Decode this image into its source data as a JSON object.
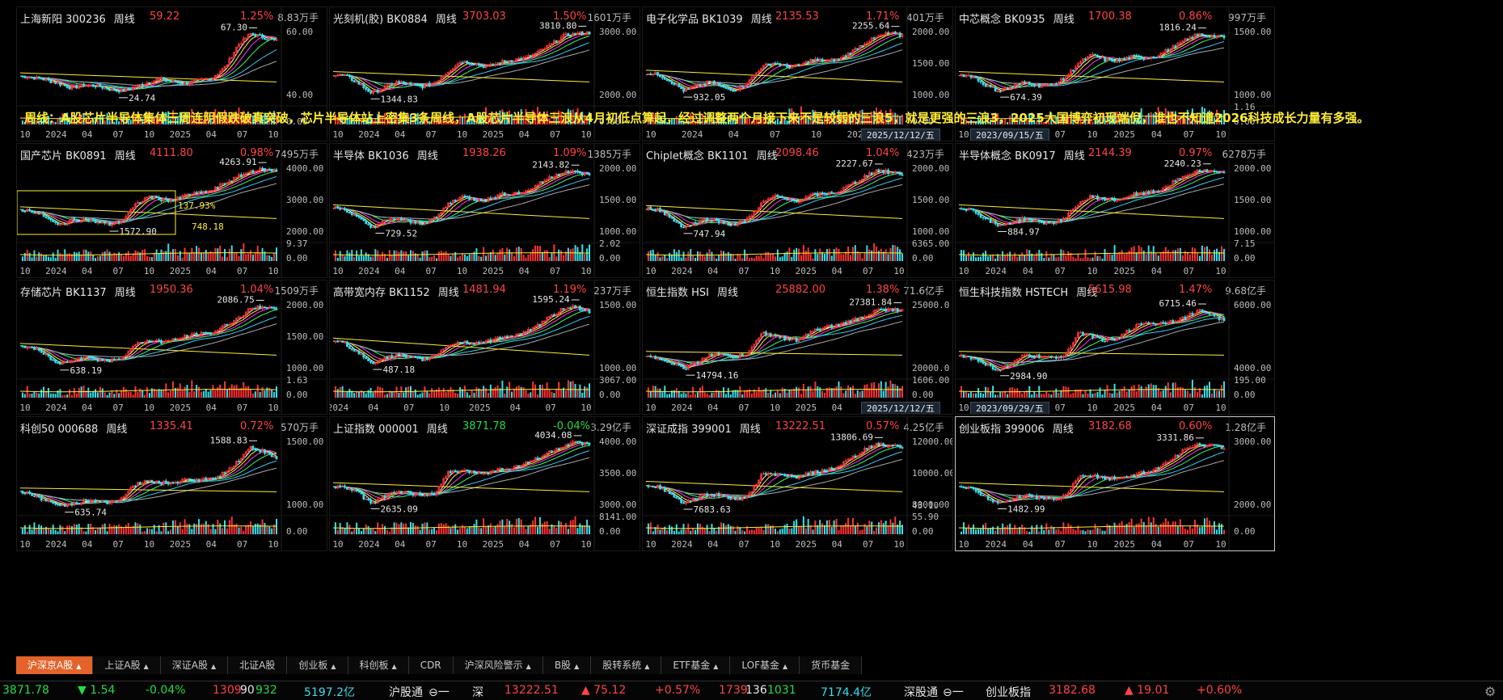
{
  "overlay_text": "周线：A股芯片半导体集体三周连阴假跌破真突破，芯片半导体站上密集3条周线，A股芯片半导体三浪从4月初低点算起，经过调整两个月接下来不是较弱的三浪5，就是更强的三浪3，2025大国博弈初现端倪，谁也不知道2026科技成长力量有多强。",
  "panels": [
    {
      "name": "上海新阳",
      "code": "300236",
      "tf": "周线",
      "price": "59.22",
      "pct": "1.25%",
      "dir": "up",
      "vol": "8.83万手",
      "high": "67.30",
      "low": "24.74",
      "yl": [
        "60.00",
        "40.00"
      ],
      "vl": [
        "",
        "0.00"
      ],
      "x": [
        "10",
        "2024",
        "04",
        "07",
        "10",
        "2025",
        "04",
        "07",
        "10"
      ],
      "shape": [
        0.38,
        0.36,
        0.33,
        0.28,
        0.22,
        0.26,
        0.25,
        0.2,
        0.18,
        0.24,
        0.3,
        0.34,
        0.3,
        0.28,
        0.32,
        0.36,
        0.5,
        0.8,
        0.95,
        0.9,
        0.85
      ],
      "date": "",
      "box": false
    },
    {
      "name": "光刻机(胶)",
      "code": "BK0884",
      "tf": "周线",
      "price": "3703.03",
      "pct": "1.50%",
      "dir": "up",
      "vol": "1601万手",
      "high": "3810.80",
      "low": "1344.83",
      "yl": [
        "3000.00",
        "2000.00"
      ],
      "vl": [
        "",
        "0.00"
      ],
      "x": [
        "10",
        "2024",
        "04",
        "07",
        "10",
        "2025",
        "04",
        "07",
        "10"
      ],
      "shape": [
        0.4,
        0.38,
        0.28,
        0.15,
        0.22,
        0.3,
        0.26,
        0.24,
        0.3,
        0.45,
        0.58,
        0.55,
        0.5,
        0.56,
        0.6,
        0.62,
        0.7,
        0.8,
        0.92,
        0.95,
        0.96
      ],
      "date": "",
      "box": false
    },
    {
      "name": "电子化学品",
      "code": "BK1039",
      "tf": "周线",
      "price": "2135.53",
      "pct": "1.71%",
      "dir": "up",
      "vol": "401万手",
      "high": "2255.64",
      "low": "932.05",
      "yl": [
        "2000.00",
        "1500.00",
        "1000.00"
      ],
      "vl": [
        "",
        "0.00"
      ],
      "x": [
        "10",
        "2024",
        "04",
        "07",
        "10",
        "2025",
        "04"
      ],
      "shape": [
        0.42,
        0.4,
        0.3,
        0.18,
        0.25,
        0.3,
        0.22,
        0.2,
        0.3,
        0.5,
        0.56,
        0.5,
        0.52,
        0.6,
        0.58,
        0.6,
        0.7,
        0.82,
        0.9,
        0.96,
        0.92
      ],
      "date": "2025/12/12/五",
      "box": false
    },
    {
      "name": "中芯概念",
      "code": "BK0935",
      "tf": "周线",
      "price": "1700.38",
      "pct": "0.86%",
      "dir": "up",
      "vol": "997万手",
      "high": "1816.24",
      "low": "674.39",
      "yl": [
        "1500.00",
        "1000.00"
      ],
      "vl": [
        "1.16",
        "0.00"
      ],
      "x": [
        "10",
        "2024",
        "04",
        "07",
        "10",
        "2025",
        "04",
        "07",
        "10"
      ],
      "shape": [
        0.4,
        0.38,
        0.26,
        0.18,
        0.24,
        0.3,
        0.25,
        0.26,
        0.35,
        0.55,
        0.66,
        0.6,
        0.58,
        0.64,
        0.62,
        0.66,
        0.75,
        0.85,
        0.94,
        0.92,
        0.9
      ],
      "date": "2023/09/15/五",
      "box": false
    },
    {
      "name": "国产芯片",
      "code": "BK0891",
      "tf": "周线",
      "price": "4111.80",
      "pct": "0.98%",
      "dir": "up",
      "vol": "7495万手",
      "high": "4263.91",
      "low": "1572.90",
      "yl": [
        "4000.00",
        "3000.00",
        "2000.00"
      ],
      "vl": [
        "9.37",
        "0.00"
      ],
      "x": [
        "10",
        "2024",
        "04",
        "07",
        "10",
        "2025",
        "04",
        "07",
        "10"
      ],
      "shape": [
        0.42,
        0.4,
        0.32,
        0.2,
        0.28,
        0.3,
        0.25,
        0.22,
        0.28,
        0.48,
        0.6,
        0.56,
        0.54,
        0.62,
        0.64,
        0.68,
        0.78,
        0.86,
        0.94,
        0.96,
        0.94
      ],
      "date": "",
      "box": true,
      "box_pct": "137.93%",
      "box_val": "748.18"
    },
    {
      "name": "半导体",
      "code": "BK1036",
      "tf": "周线",
      "price": "1938.26",
      "pct": "1.09%",
      "dir": "up",
      "vol": "1385万手",
      "high": "2143.82",
      "low": "729.52",
      "yl": [
        "2000.00",
        "1500.00",
        "1000.00"
      ],
      "vl": [
        "2.02",
        "0.00"
      ],
      "x": [
        "10",
        "2024",
        "04",
        "07",
        "10",
        "2025",
        "04",
        "07",
        "10"
      ],
      "shape": [
        0.45,
        0.42,
        0.3,
        0.18,
        0.26,
        0.3,
        0.25,
        0.24,
        0.3,
        0.5,
        0.6,
        0.56,
        0.55,
        0.62,
        0.64,
        0.66,
        0.76,
        0.86,
        0.94,
        0.92,
        0.88
      ],
      "date": "",
      "box": false
    },
    {
      "name": "Chiplet概念",
      "code": "BK1101",
      "tf": "周线",
      "price": "2098.46",
      "pct": "1.04%",
      "dir": "up",
      "vol": "423万手",
      "high": "2227.67",
      "low": "747.94",
      "yl": [
        "2000.00",
        "1500.00",
        "1000.00"
      ],
      "vl": [
        "6365.00",
        "0.00"
      ],
      "x": [
        "10",
        "2024",
        "04",
        "07",
        "10",
        "2025",
        "04",
        "07",
        "10"
      ],
      "shape": [
        0.44,
        0.42,
        0.3,
        0.18,
        0.26,
        0.3,
        0.24,
        0.22,
        0.3,
        0.5,
        0.6,
        0.55,
        0.54,
        0.62,
        0.63,
        0.66,
        0.76,
        0.86,
        0.95,
        0.92,
        0.9
      ],
      "date": "",
      "box": false
    },
    {
      "name": "半导体概念",
      "code": "BK0917",
      "tf": "周线",
      "price": "2144.39",
      "pct": "0.97%",
      "dir": "up",
      "vol": "6278万手",
      "high": "2240.23",
      "low": "884.97",
      "yl": [
        "2000.00",
        "1500.00",
        "1000.00"
      ],
      "vl": [
        "7.15",
        "0.00"
      ],
      "x": [
        "10",
        "2024",
        "04",
        "07",
        "10",
        "2025",
        "04",
        "07",
        "10"
      ],
      "shape": [
        0.45,
        0.42,
        0.3,
        0.2,
        0.26,
        0.3,
        0.25,
        0.24,
        0.3,
        0.5,
        0.6,
        0.56,
        0.55,
        0.62,
        0.64,
        0.67,
        0.77,
        0.86,
        0.95,
        0.93,
        0.9
      ],
      "date": "",
      "box": false
    },
    {
      "name": "存储芯片",
      "code": "BK1137",
      "tf": "周线",
      "price": "1950.36",
      "pct": "1.04%",
      "dir": "up",
      "vol": "1509万手",
      "high": "2086.75",
      "low": "638.19",
      "yl": [
        "2000.00",
        "1500.00",
        "1000.00"
      ],
      "vl": [
        "1.63",
        "0.00"
      ],
      "x": [
        "10",
        "2024",
        "04",
        "07",
        "10",
        "2025",
        "04",
        "07",
        "10"
      ],
      "shape": [
        0.42,
        0.4,
        0.3,
        0.18,
        0.24,
        0.28,
        0.24,
        0.22,
        0.28,
        0.44,
        0.5,
        0.48,
        0.5,
        0.56,
        0.58,
        0.6,
        0.7,
        0.8,
        0.92,
        0.96,
        0.9
      ],
      "date": "",
      "box": false
    },
    {
      "name": "高带宽内存",
      "code": "BK1152",
      "tf": "周线",
      "price": "1481.94",
      "pct": "1.19%",
      "dir": "up",
      "vol": "237万手",
      "high": "1595.24",
      "low": "487.18",
      "yl": [
        "1500.00",
        "1000.00"
      ],
      "vl": [
        "3067.00",
        "0.00"
      ],
      "x": [
        "2024",
        "04",
        "07",
        "10",
        "2025",
        "04",
        "07",
        "10"
      ],
      "shape": [
        0.5,
        0.45,
        0.32,
        0.2,
        0.26,
        0.3,
        0.26,
        0.24,
        0.3,
        0.44,
        0.48,
        0.46,
        0.48,
        0.54,
        0.56,
        0.6,
        0.7,
        0.82,
        0.94,
        0.95,
        0.88
      ],
      "date": "",
      "box": false
    },
    {
      "name": "恒生指数",
      "code": "HSI",
      "tf": "周线",
      "price": "25882.00",
      "pct": "1.38%",
      "dir": "up",
      "vol": "71.6亿手",
      "high": "27381.84",
      "low": "14794.16",
      "yl": [
        "25000.0",
        "20000.0"
      ],
      "vl": [
        "1606.00",
        "0.00"
      ],
      "x": [
        "10",
        "2024",
        "04",
        "07",
        "10",
        "2025",
        "04",
        "07",
        "10"
      ],
      "shape": [
        0.3,
        0.26,
        0.2,
        0.12,
        0.2,
        0.32,
        0.3,
        0.28,
        0.32,
        0.6,
        0.56,
        0.52,
        0.5,
        0.62,
        0.68,
        0.7,
        0.76,
        0.82,
        0.9,
        0.92,
        0.9
      ],
      "date": "2025/12/12/五",
      "box": false
    },
    {
      "name": "恒生科技指数",
      "code": "HSTECH",
      "tf": "周线",
      "price": "5615.98",
      "pct": "1.47%",
      "dir": "up",
      "vol": "9.68亿手",
      "high": "6715.46",
      "low": "2984.90",
      "yl": [
        "6000.00",
        "4000.00"
      ],
      "vl": [
        "195.00",
        "0.00"
      ],
      "x": [
        "10",
        "2024",
        "04",
        "07",
        "10",
        "2025",
        "04",
        "07",
        "10"
      ],
      "shape": [
        0.3,
        0.26,
        0.18,
        0.1,
        0.18,
        0.3,
        0.28,
        0.26,
        0.3,
        0.6,
        0.56,
        0.5,
        0.52,
        0.66,
        0.74,
        0.72,
        0.76,
        0.8,
        0.9,
        0.86,
        0.76
      ],
      "date": "2023/09/29/五",
      "box": false
    },
    {
      "name": "科创50",
      "code": "000688",
      "tf": "周线",
      "price": "1335.41",
      "pct": "0.72%",
      "dir": "up",
      "vol": "570万手",
      "high": "1588.83",
      "low": "635.74",
      "yl": [
        "1500.00",
        "1000.00"
      ],
      "vl": [
        "",
        "0.00"
      ],
      "x": [
        "10",
        "2024",
        "04",
        "07",
        "10",
        "2025",
        "04",
        "07",
        "10"
      ],
      "shape": [
        0.3,
        0.26,
        0.18,
        0.1,
        0.14,
        0.18,
        0.16,
        0.16,
        0.22,
        0.4,
        0.44,
        0.42,
        0.42,
        0.46,
        0.46,
        0.48,
        0.56,
        0.72,
        0.9,
        0.84,
        0.74
      ],
      "date": "",
      "box": false
    },
    {
      "name": "上证指数",
      "code": "000001",
      "tf": "周线",
      "price": "3871.78",
      "pct": "-0.04%",
      "dir": "dn",
      "vol": "3.29亿手",
      "high": "4034.08",
      "low": "2635.09",
      "yl": [
        "4000.00",
        "3500.00",
        "3000.00"
      ],
      "vl": [
        "8141.00",
        "0.00"
      ],
      "x": [
        "10",
        "2024",
        "04",
        "07",
        "10",
        "2025",
        "04",
        "07",
        "10"
      ],
      "shape": [
        0.38,
        0.36,
        0.28,
        0.14,
        0.24,
        0.3,
        0.28,
        0.26,
        0.28,
        0.56,
        0.58,
        0.56,
        0.56,
        0.6,
        0.62,
        0.68,
        0.76,
        0.84,
        0.92,
        0.96,
        0.92
      ],
      "date": "",
      "box": false
    },
    {
      "name": "深证成指",
      "code": "399001",
      "tf": "周线",
      "price": "13222.51",
      "pct": "0.57%",
      "dir": "up",
      "vol": "4.25亿手",
      "high": "13806.69",
      "low": "7683.63",
      "yl": [
        "12000.00",
        "10000.00",
        "8000.00"
      ],
      "vl": [
        "55.90",
        "0.00"
      ],
      "x": [
        "10",
        "2024",
        "04",
        "07",
        "10",
        "2025",
        "04",
        "07",
        "10"
      ],
      "shape": [
        0.4,
        0.36,
        0.26,
        0.14,
        0.22,
        0.28,
        0.24,
        0.2,
        0.24,
        0.52,
        0.54,
        0.5,
        0.5,
        0.56,
        0.58,
        0.64,
        0.74,
        0.86,
        0.94,
        0.92,
        0.9
      ],
      "date": "",
      "box": false,
      "vl_top": "43.10"
    },
    {
      "name": "创业板指",
      "code": "399006",
      "tf": "周线",
      "price": "3182.68",
      "pct": "0.60%",
      "dir": "up",
      "vol": "1.28亿手",
      "high": "3331.86",
      "low": "1482.99",
      "yl": [
        "3000.00",
        "2000.00"
      ],
      "vl": [
        "",
        "0.00"
      ],
      "x": [
        "10",
        "2024",
        "04",
        "07",
        "10",
        "2025",
        "04",
        "07",
        "10"
      ],
      "shape": [
        0.38,
        0.34,
        0.24,
        0.14,
        0.2,
        0.26,
        0.22,
        0.2,
        0.24,
        0.5,
        0.52,
        0.48,
        0.48,
        0.52,
        0.56,
        0.62,
        0.74,
        0.86,
        0.94,
        0.92,
        0.9
      ],
      "date": "",
      "box": false,
      "selected": true
    }
  ],
  "tabs": [
    {
      "label": "沪深京A股",
      "tri": true,
      "active": true
    },
    {
      "label": "上证A股",
      "tri": true
    },
    {
      "label": "深证A股",
      "tri": true
    },
    {
      "label": "北证A股",
      "tri": false
    },
    {
      "label": "创业板",
      "tri": true
    },
    {
      "label": "科创板",
      "tri": true
    },
    {
      "label": "CDR",
      "tri": false
    },
    {
      "label": "沪深风险警示",
      "tri": true
    },
    {
      "label": "B股",
      "tri": true
    },
    {
      "label": "股转系统",
      "tri": true
    },
    {
      "label": "ETF基金",
      "tri": true
    },
    {
      "label": "LOF基金",
      "tri": true
    },
    {
      "label": "货币基金",
      "tri": false
    }
  ],
  "status": {
    "sh_price": "3871.78",
    "sh_chg": "▼ 1.54",
    "sh_pct": "-0.04%",
    "sh_up": "1309",
    "sh_flat": "90",
    "sh_down": "932",
    "sh_amt": "5197.2亿",
    "sh_connect": "沪股通",
    "sz_label": "深",
    "sz_price": "13222.51",
    "sz_chg": "▲ 75.12",
    "sz_pct": "+0.57%",
    "sz_up": "1739",
    "sz_flat": "136",
    "sz_down": "1031",
    "sz_amt": "7174.4亿",
    "sz_connect": "深股通",
    "cyb_label": "创业板指",
    "cyb_price": "3182.68",
    "cyb_chg": "▲ 19.01",
    "cyb_pct": "+0.60%"
  }
}
